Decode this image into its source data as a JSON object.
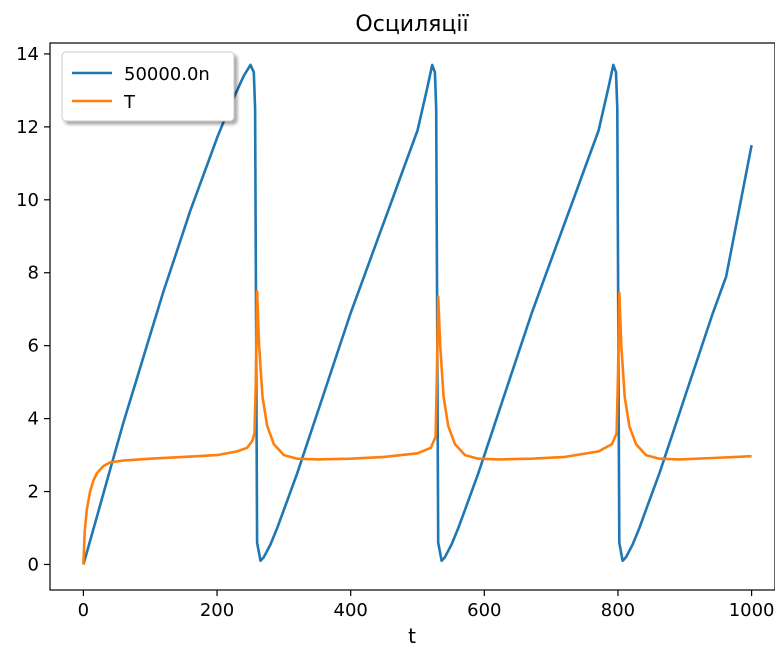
{
  "chart_data": {
    "type": "line",
    "title": "Осциляції",
    "xlabel": "t",
    "ylabel": "",
    "xlim": [
      -50,
      1035
    ],
    "ylim": [
      -0.7,
      14.3
    ],
    "xticks": [
      0,
      200,
      400,
      600,
      800,
      1000
    ],
    "yticks": [
      0,
      2,
      4,
      6,
      8,
      10,
      12,
      14
    ],
    "grid": false,
    "legend": "top-left",
    "series": [
      {
        "name": "50000.0n",
        "color": "#1f77b4",
        "x": [
          0,
          20,
          40,
          60,
          80,
          100,
          120,
          140,
          160,
          180,
          200,
          220,
          240,
          250,
          255,
          257,
          260,
          265,
          270,
          280,
          290,
          300,
          320,
          340,
          360,
          380,
          400,
          420,
          440,
          460,
          480,
          500,
          515,
          522,
          526,
          528,
          531,
          536,
          541,
          551,
          561,
          571,
          591,
          611,
          631,
          651,
          671,
          691,
          711,
          731,
          751,
          771,
          786,
          793,
          797,
          799,
          802,
          807,
          812,
          822,
          832,
          842,
          862,
          882,
          902,
          922,
          942,
          962,
          982,
          1000
        ],
        "y": [
          0,
          1.3,
          2.6,
          3.9,
          5.1,
          6.3,
          7.5,
          8.6,
          9.7,
          10.7,
          11.7,
          12.6,
          13.4,
          13.7,
          13.5,
          12.5,
          0.6,
          0.1,
          0.2,
          0.55,
          1.0,
          1.5,
          2.5,
          3.6,
          4.7,
          5.8,
          6.9,
          7.9,
          8.9,
          9.9,
          10.9,
          11.9,
          13.1,
          13.7,
          13.5,
          12.5,
          0.6,
          0.1,
          0.2,
          0.55,
          1.0,
          1.5,
          2.5,
          3.6,
          4.7,
          5.8,
          6.9,
          7.9,
          8.9,
          9.9,
          10.9,
          11.9,
          13.1,
          13.7,
          13.5,
          12.5,
          0.6,
          0.1,
          0.2,
          0.55,
          1.0,
          1.5,
          2.5,
          3.6,
          4.7,
          5.8,
          6.9,
          7.9,
          9.8,
          11.5
        ]
      },
      {
        "name": "T",
        "color": "#ff7f0e",
        "x": [
          0,
          2,
          5,
          10,
          15,
          20,
          30,
          40,
          60,
          100,
          150,
          200,
          230,
          245,
          253,
          256,
          258,
          260,
          263,
          268,
          275,
          285,
          300,
          320,
          350,
          400,
          450,
          500,
          520,
          527,
          529,
          531,
          534,
          539,
          546,
          556,
          571,
          591,
          621,
          671,
          721,
          771,
          791,
          798,
          800,
          802,
          805,
          810,
          817,
          827,
          842,
          862,
          892,
          942,
          1000
        ],
        "y": [
          0,
          0.9,
          1.5,
          2.0,
          2.3,
          2.5,
          2.7,
          2.8,
          2.85,
          2.9,
          2.95,
          3.0,
          3.1,
          3.2,
          3.4,
          3.6,
          5.0,
          7.5,
          6.0,
          4.6,
          3.8,
          3.3,
          3.0,
          2.9,
          2.88,
          2.9,
          2.95,
          3.05,
          3.2,
          3.5,
          5.2,
          7.35,
          6.0,
          4.6,
          3.8,
          3.3,
          3.0,
          2.9,
          2.88,
          2.9,
          2.95,
          3.1,
          3.3,
          3.6,
          5.2,
          7.45,
          6.0,
          4.6,
          3.8,
          3.3,
          3.0,
          2.9,
          2.88,
          2.92,
          2.97
        ]
      }
    ]
  }
}
